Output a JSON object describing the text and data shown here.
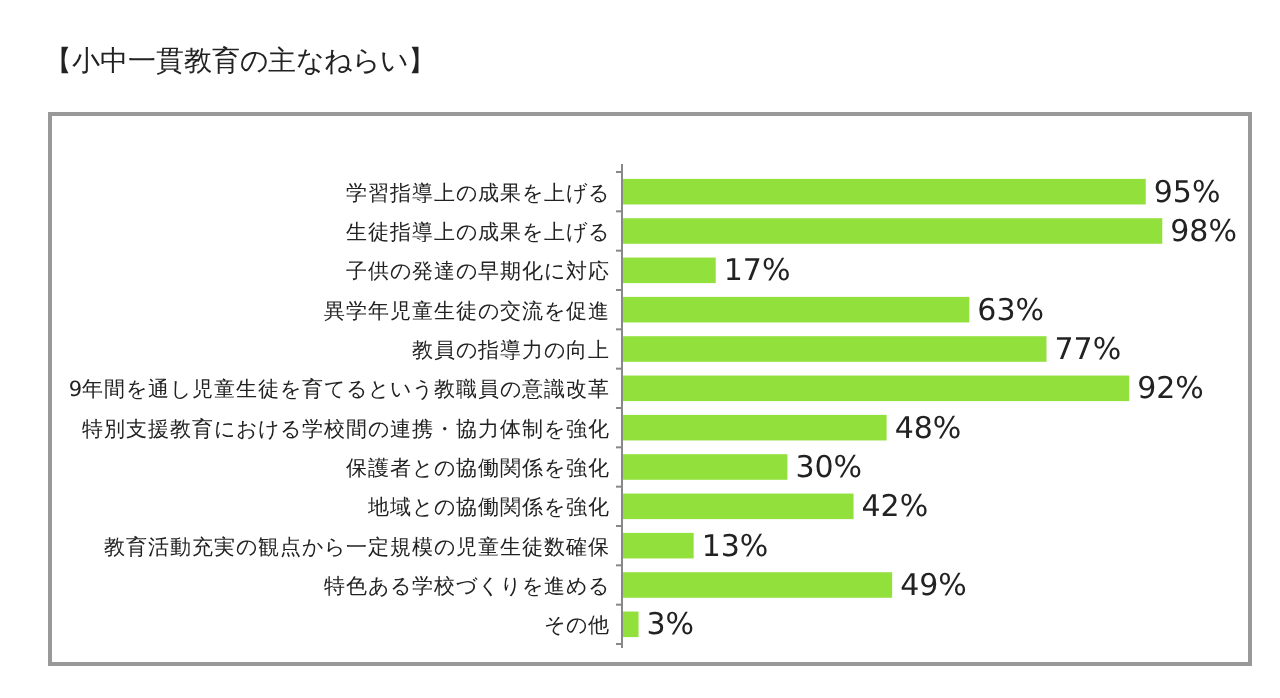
{
  "chart_data": {
    "type": "bar",
    "orientation": "horizontal",
    "title": "【小中一貫教育の主なねらい】",
    "categories": [
      "学習指導上の成果を上げる",
      "生徒指導上の成果を上げる",
      "子供の発達の早期化に対応",
      "異学年児童生徒の交流を促進",
      "教員の指導力の向上",
      "9年間を通し児童生徒を育てるという教職員の意識改革",
      "特別支援教育における学校間の連携・協力体制を強化",
      "保護者との協働関係を強化",
      "地域との協働関係を強化",
      "教育活動充実の観点から一定規模の児童生徒数確保",
      "特色ある学校づくりを進める",
      "その他"
    ],
    "values": [
      95,
      98,
      17,
      63,
      77,
      92,
      48,
      30,
      42,
      13,
      49,
      3
    ],
    "value_labels": [
      "95%",
      "98%",
      "17%",
      "63%",
      "77%",
      "92%",
      "48%",
      "30%",
      "42%",
      "13%",
      "49%",
      "3%"
    ],
    "color": "#92e03c",
    "xlim": [
      0,
      115
    ]
  }
}
